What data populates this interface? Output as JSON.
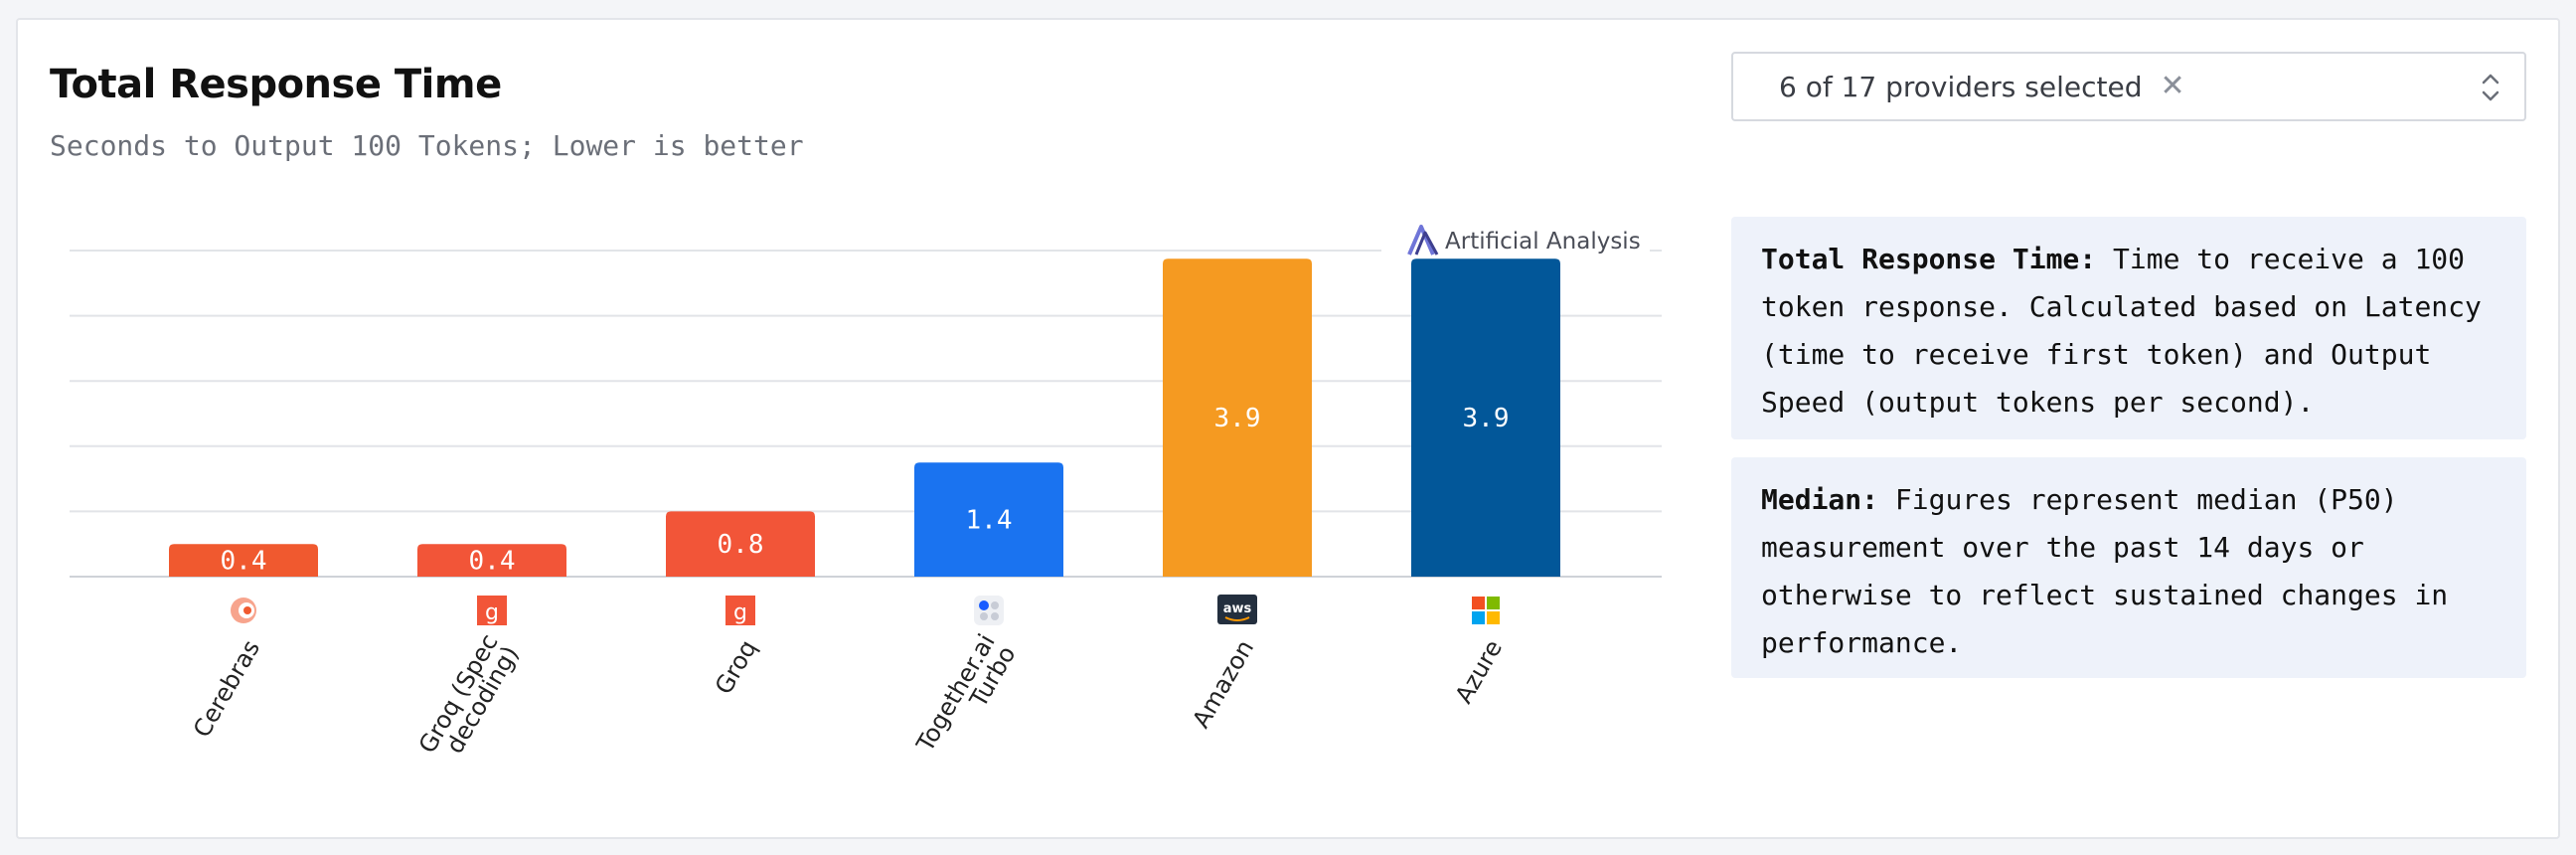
{
  "title": "Total Response Time",
  "subtitle": "Seconds to Output 100 Tokens; Lower is better",
  "provider_select": {
    "label": "6 of 17 providers selected",
    "clear_icon": "close-icon",
    "chevron_icon": "chevron-updown-icon"
  },
  "watermark": "Artificial Analysis",
  "info": [
    {
      "heading": "Total Response Time:",
      "text": " Time to receive a 100 token response. Calculated based on Latency (time to receive first token) and Output Speed (output tokens per second)."
    },
    {
      "heading": "Median:",
      "text": " Figures represent median (P50) measurement over the past 14 days or otherwise to reflect sustained changes in performance."
    }
  ],
  "chart_data": {
    "type": "bar",
    "title": "Total Response Time",
    "subtitle": "Seconds to Output 100 Tokens; Lower is better",
    "categories": [
      "Cerebras",
      "Groq (Spec decoding)",
      "Groq",
      "Together.ai Turbo",
      "Amazon",
      "Azure"
    ],
    "values": [
      0.4,
      0.4,
      0.8,
      1.4,
      3.9,
      3.9
    ],
    "colors": [
      "#f0592f",
      "#f25538",
      "#f25538",
      "#1a73f0",
      "#f59a21",
      "#025799"
    ],
    "tick_icons": [
      "cerebras-logo-icon",
      "groq-logo-icon",
      "groq-logo-icon",
      "together-ai-logo-icon",
      "aws-logo-icon",
      "microsoft-logo-icon"
    ],
    "ylim": [
      0,
      4
    ],
    "grid": true,
    "legend": "none"
  }
}
